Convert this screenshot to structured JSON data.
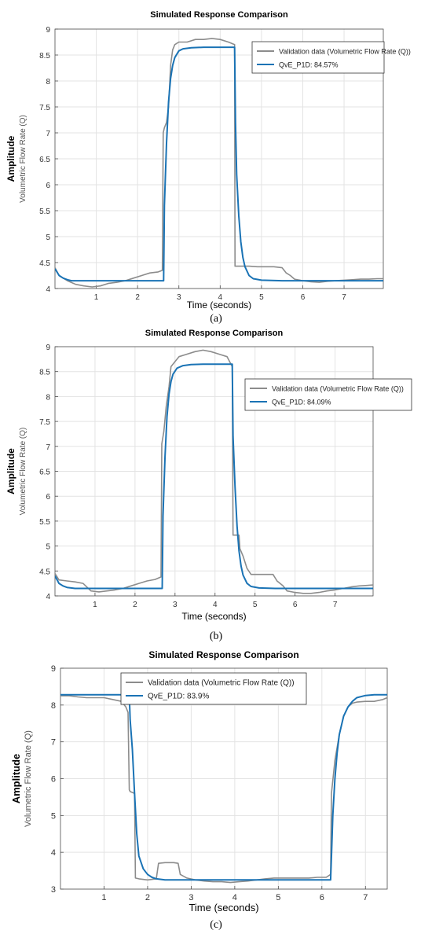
{
  "chart_data": [
    {
      "type": "line",
      "title": "Simulated Response Comparison",
      "xlabel": "Time (seconds)",
      "ylabel": "Amplitude",
      "ylabel_secondary": "Volumetric Flow Rate (Q)",
      "xlim": [
        0,
        7.95
      ],
      "ylim": [
        4,
        9
      ],
      "xticks": [
        1,
        2,
        3,
        4,
        5,
        6,
        7
      ],
      "yticks": [
        4,
        4.5,
        5,
        5.5,
        6,
        6.5,
        7,
        7.5,
        8,
        8.5,
        9
      ],
      "grid": true,
      "legend_position": "top-right",
      "caption": "(a)",
      "series": [
        {
          "name": "Validation data (Volumetric Flow Rate (Q))",
          "color": "#8c8c8c",
          "x": [
            0,
            0.1,
            0.3,
            0.5,
            0.7,
            0.9,
            1.1,
            1.3,
            1.5,
            1.7,
            1.9,
            2.1,
            2.3,
            2.5,
            2.6,
            2.62,
            2.65,
            2.7,
            2.75,
            2.8,
            2.85,
            2.9,
            3.0,
            3.2,
            3.4,
            3.6,
            3.8,
            4.0,
            4.2,
            4.35,
            4.36,
            4.5,
            4.7,
            4.9,
            5.1,
            5.3,
            5.5,
            5.6,
            5.7,
            5.8,
            6.0,
            6.2,
            6.4,
            6.6,
            6.8,
            7.0,
            7.2,
            7.4,
            7.6,
            7.8,
            7.95
          ],
          "y": [
            4.4,
            4.25,
            4.15,
            4.08,
            4.05,
            4.03,
            4.05,
            4.1,
            4.12,
            4.15,
            4.2,
            4.25,
            4.3,
            4.32,
            4.35,
            7.0,
            7.1,
            7.2,
            7.5,
            8.3,
            8.6,
            8.7,
            8.75,
            8.75,
            8.8,
            8.8,
            8.82,
            8.8,
            8.75,
            8.7,
            4.43,
            4.43,
            4.43,
            4.42,
            4.42,
            4.42,
            4.4,
            4.3,
            4.25,
            4.18,
            4.15,
            4.13,
            4.12,
            4.14,
            4.15,
            4.16,
            4.17,
            4.18,
            4.18,
            4.19,
            4.19
          ]
        },
        {
          "name": "QvE_P1D: 84.57%",
          "color": "#1a73b5",
          "x": [
            0,
            0.1,
            0.2,
            0.3,
            0.4,
            0.6,
            1.0,
            1.5,
            2.0,
            2.5,
            2.63,
            2.65,
            2.7,
            2.75,
            2.8,
            2.85,
            2.9,
            3.0,
            3.1,
            3.3,
            3.6,
            4.0,
            4.35,
            4.37,
            4.4,
            4.45,
            4.5,
            4.55,
            4.6,
            4.7,
            4.8,
            5.0,
            5.5,
            6.0,
            6.5,
            7.0,
            7.5,
            7.95
          ],
          "y": [
            4.38,
            4.25,
            4.2,
            4.17,
            4.15,
            4.15,
            4.15,
            4.15,
            4.15,
            4.15,
            4.15,
            5.6,
            6.8,
            7.6,
            8.05,
            8.3,
            8.45,
            8.58,
            8.62,
            8.64,
            8.65,
            8.65,
            8.65,
            7.2,
            6.2,
            5.4,
            4.9,
            4.6,
            4.42,
            4.25,
            4.19,
            4.16,
            4.15,
            4.15,
            4.15,
            4.15,
            4.15,
            4.15
          ]
        }
      ]
    },
    {
      "type": "line",
      "title": "Simulated Response Comparison",
      "xlabel": "Time (seconds)",
      "ylabel": "Amplitude",
      "ylabel_secondary": "Volumetric Flow Rate (Q)",
      "xlim": [
        0,
        7.95
      ],
      "ylim": [
        4,
        9
      ],
      "xticks": [
        1,
        2,
        3,
        4,
        5,
        6,
        7
      ],
      "yticks": [
        4,
        4.5,
        5,
        5.5,
        6,
        6.5,
        7,
        7.5,
        8,
        8.5,
        9
      ],
      "grid": true,
      "legend_position": "top-right",
      "caption": "(b)",
      "series": [
        {
          "name": "Validation data (Volumetric Flow Rate (Q))",
          "color": "#8c8c8c",
          "x": [
            0,
            0.1,
            0.3,
            0.5,
            0.7,
            0.9,
            1.1,
            1.3,
            1.5,
            1.7,
            1.9,
            2.1,
            2.3,
            2.5,
            2.65,
            2.67,
            2.72,
            2.78,
            2.85,
            2.9,
            3.0,
            3.1,
            3.3,
            3.5,
            3.7,
            3.9,
            4.1,
            4.3,
            4.43,
            4.45,
            4.6,
            4.62,
            4.7,
            4.8,
            4.9,
            5.1,
            5.3,
            5.45,
            5.55,
            5.7,
            5.8,
            6.0,
            6.2,
            6.4,
            6.6,
            6.8,
            7.0,
            7.2,
            7.4,
            7.6,
            7.8,
            7.95
          ],
          "y": [
            4.45,
            4.32,
            4.3,
            4.28,
            4.25,
            4.1,
            4.08,
            4.1,
            4.12,
            4.15,
            4.2,
            4.25,
            4.3,
            4.33,
            4.38,
            7.05,
            7.3,
            7.8,
            8.2,
            8.6,
            8.7,
            8.8,
            8.85,
            8.9,
            8.93,
            8.9,
            8.85,
            8.8,
            8.6,
            5.22,
            5.22,
            4.95,
            4.8,
            4.55,
            4.43,
            4.43,
            4.43,
            4.43,
            4.3,
            4.2,
            4.1,
            4.07,
            4.05,
            4.05,
            4.07,
            4.1,
            4.12,
            4.15,
            4.18,
            4.2,
            4.21,
            4.22
          ]
        },
        {
          "name": "QvE_P1D: 84.09%",
          "color": "#1a73b5",
          "x": [
            0,
            0.1,
            0.2,
            0.3,
            0.5,
            1.0,
            1.5,
            2.0,
            2.5,
            2.68,
            2.7,
            2.75,
            2.8,
            2.85,
            2.9,
            2.95,
            3.05,
            3.2,
            3.4,
            3.7,
            4.0,
            4.43,
            4.45,
            4.5,
            4.55,
            4.6,
            4.65,
            4.7,
            4.8,
            4.9,
            5.1,
            5.5,
            6.0,
            6.5,
            7.0,
            7.5,
            7.95
          ],
          "y": [
            4.4,
            4.25,
            4.2,
            4.17,
            4.15,
            4.15,
            4.15,
            4.15,
            4.15,
            4.15,
            5.6,
            6.8,
            7.6,
            8.05,
            8.3,
            8.45,
            8.57,
            8.62,
            8.64,
            8.65,
            8.65,
            8.65,
            7.2,
            6.2,
            5.4,
            4.9,
            4.6,
            4.42,
            4.25,
            4.19,
            4.16,
            4.15,
            4.15,
            4.15,
            4.15,
            4.15,
            4.15
          ]
        }
      ]
    },
    {
      "type": "line",
      "title": "Simulated Response Comparison",
      "xlabel": "Time (seconds)",
      "ylabel": "Amplitude",
      "ylabel_secondary": "Volumetric Flow Rate (Q)",
      "xlim": [
        0,
        7.5
      ],
      "ylim": [
        3,
        9
      ],
      "xticks": [
        1,
        2,
        3,
        4,
        5,
        6,
        7
      ],
      "yticks": [
        3,
        4,
        5,
        6,
        7,
        8,
        9
      ],
      "grid": true,
      "legend_position": "top",
      "caption": "(c)",
      "series": [
        {
          "name": "Validation data (Volumetric Flow Rate (Q))",
          "color": "#8c8c8c",
          "x": [
            0,
            0.2,
            0.4,
            0.6,
            0.8,
            1.0,
            1.2,
            1.4,
            1.5,
            1.55,
            1.58,
            1.6,
            1.7,
            1.72,
            1.8,
            2.0,
            2.2,
            2.25,
            2.4,
            2.6,
            2.7,
            2.75,
            2.9,
            3.1,
            3.3,
            3.5,
            3.7,
            3.9,
            4.1,
            4.3,
            4.5,
            4.7,
            4.9,
            5.1,
            5.3,
            5.5,
            5.7,
            5.9,
            6.1,
            6.2,
            6.22,
            6.3,
            6.4,
            6.5,
            6.6,
            6.7,
            6.8,
            7.0,
            7.2,
            7.4,
            7.5
          ],
          "y": [
            8.25,
            8.25,
            8.22,
            8.2,
            8.2,
            8.2,
            8.15,
            8.1,
            7.95,
            7.8,
            5.7,
            5.65,
            5.6,
            3.3,
            3.28,
            3.25,
            3.28,
            3.7,
            3.72,
            3.72,
            3.7,
            3.4,
            3.3,
            3.25,
            3.22,
            3.2,
            3.2,
            3.18,
            3.2,
            3.22,
            3.25,
            3.28,
            3.3,
            3.3,
            3.3,
            3.3,
            3.3,
            3.32,
            3.32,
            3.4,
            5.6,
            6.5,
            7.2,
            7.7,
            7.95,
            8.05,
            8.08,
            8.1,
            8.1,
            8.15,
            8.2
          ]
        },
        {
          "name": "QvE_P1D: 83.9%",
          "color": "#1a73b5",
          "x": [
            0,
            0.5,
            1.0,
            1.5,
            1.58,
            1.6,
            1.65,
            1.7,
            1.75,
            1.8,
            1.9,
            2.0,
            2.1,
            2.2,
            2.4,
            2.8,
            3.5,
            4.5,
            5.5,
            6.2,
            6.22,
            6.25,
            6.3,
            6.35,
            6.4,
            6.5,
            6.6,
            6.7,
            6.8,
            7.0,
            7.2,
            7.5
          ],
          "y": [
            8.28,
            8.28,
            8.28,
            8.28,
            8.28,
            7.6,
            6.8,
            5.6,
            4.5,
            3.9,
            3.55,
            3.4,
            3.32,
            3.28,
            3.25,
            3.25,
            3.25,
            3.25,
            3.25,
            3.25,
            3.9,
            5.0,
            6.0,
            6.7,
            7.2,
            7.7,
            7.95,
            8.1,
            8.2,
            8.26,
            8.28,
            8.28
          ]
        }
      ]
    }
  ]
}
